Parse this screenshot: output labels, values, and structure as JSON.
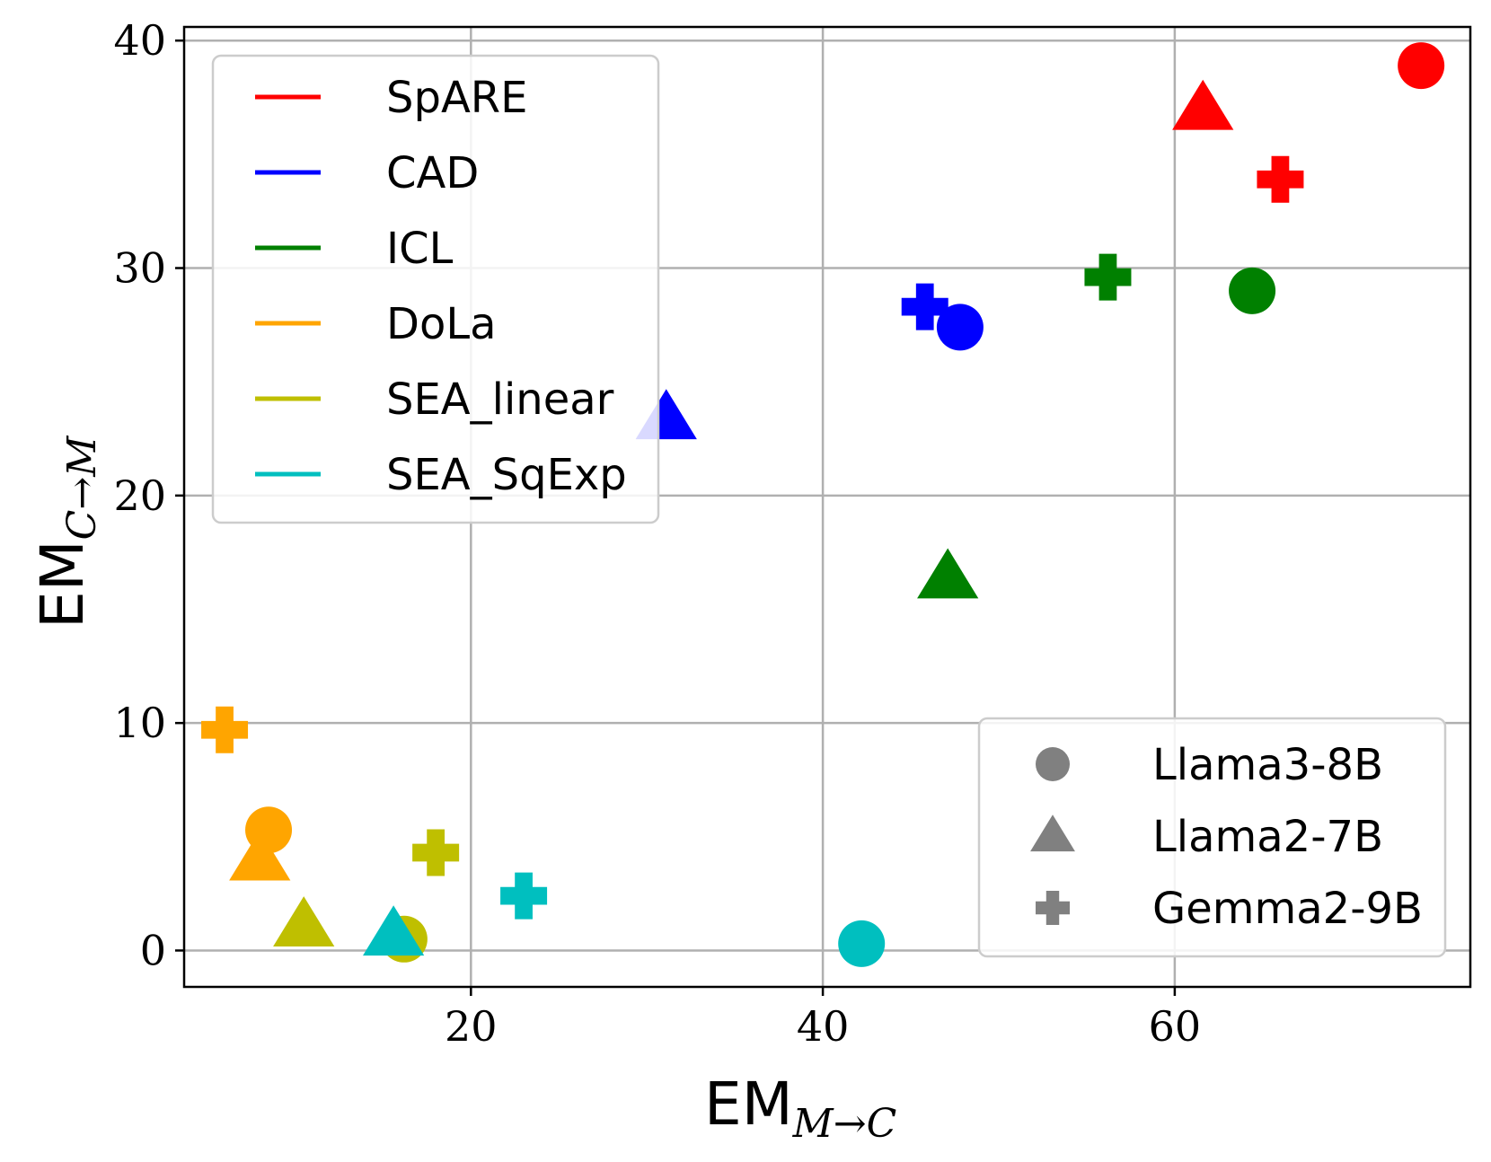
{
  "chart_data": {
    "type": "scatter",
    "xlabel": {
      "main": "EM",
      "sub": "M→C"
    },
    "ylabel": {
      "main": "EM",
      "sub": "C→M"
    },
    "xlim": [
      3.7,
      76.8
    ],
    "ylim": [
      -1.6,
      40.6
    ],
    "xticks": [
      20,
      40,
      60
    ],
    "yticks": [
      0,
      10,
      20,
      30,
      40
    ],
    "grid": true,
    "methods": [
      {
        "name": "SpARE",
        "color": "#ff0000"
      },
      {
        "name": "CAD",
        "color": "#0000ff"
      },
      {
        "name": "ICL",
        "color": "#008000"
      },
      {
        "name": "DoLa",
        "color": "#ffa500"
      },
      {
        "name": "SEA_linear",
        "color": "#bfbf00"
      },
      {
        "name": "SEA_SqExp",
        "color": "#00bfbf"
      }
    ],
    "models": [
      {
        "name": "Llama3-8B",
        "marker": "circle",
        "legend_color": "#808080"
      },
      {
        "name": "Llama2-7B",
        "marker": "triangle",
        "legend_color": "#808080"
      },
      {
        "name": "Gemma2-9B",
        "marker": "plus",
        "legend_color": "#808080"
      }
    ],
    "method_legend_position": "upper-left",
    "model_legend_position": "lower-right",
    "points": [
      {
        "method": "SpARE",
        "model": "Llama3-8B",
        "x": 74.0,
        "y": 38.9
      },
      {
        "method": "SpARE",
        "model": "Llama2-7B",
        "x": 61.6,
        "y": 37.0
      },
      {
        "method": "SpARE",
        "model": "Gemma2-9B",
        "x": 66.0,
        "y": 33.9
      },
      {
        "method": "CAD",
        "model": "Llama3-8B",
        "x": 47.8,
        "y": 27.4
      },
      {
        "method": "CAD",
        "model": "Llama2-7B",
        "x": 31.1,
        "y": 23.4
      },
      {
        "method": "CAD",
        "model": "Gemma2-9B",
        "x": 45.8,
        "y": 28.3
      },
      {
        "method": "ICL",
        "model": "Llama3-8B",
        "x": 64.4,
        "y": 29.0
      },
      {
        "method": "ICL",
        "model": "Llama2-7B",
        "x": 47.1,
        "y": 16.4
      },
      {
        "method": "ICL",
        "model": "Gemma2-9B",
        "x": 56.2,
        "y": 29.6
      },
      {
        "method": "DoLa",
        "model": "Llama3-8B",
        "x": 8.5,
        "y": 5.3
      },
      {
        "method": "DoLa",
        "model": "Llama2-7B",
        "x": 8.0,
        "y": 4.0
      },
      {
        "method": "DoLa",
        "model": "Gemma2-9B",
        "x": 6.0,
        "y": 9.7
      },
      {
        "method": "SEA_linear",
        "model": "Llama3-8B",
        "x": 16.2,
        "y": 0.5
      },
      {
        "method": "SEA_linear",
        "model": "Llama2-7B",
        "x": 10.5,
        "y": 1.1
      },
      {
        "method": "SEA_linear",
        "model": "Gemma2-9B",
        "x": 18.0,
        "y": 4.3
      },
      {
        "method": "SEA_SqExp",
        "model": "Llama3-8B",
        "x": 42.2,
        "y": 0.3
      },
      {
        "method": "SEA_SqExp",
        "model": "Llama2-7B",
        "x": 15.6,
        "y": 0.7
      },
      {
        "method": "SEA_SqExp",
        "model": "Gemma2-9B",
        "x": 23.0,
        "y": 2.4
      }
    ]
  }
}
